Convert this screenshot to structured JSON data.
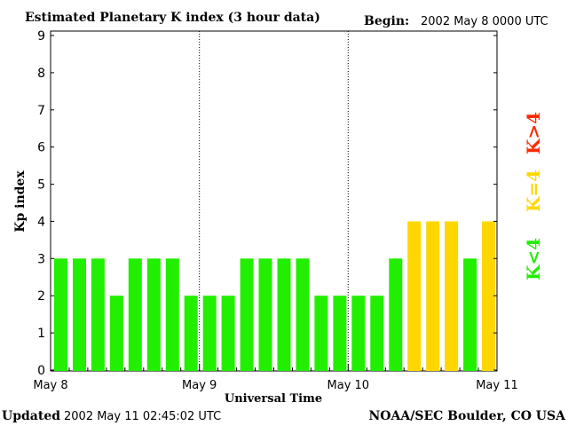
{
  "header": {
    "title": "Estimated Planetary K index (3 hour data)",
    "begin_label": "Begin:",
    "begin_value": "2002 May 8 0000 UTC"
  },
  "footer": {
    "updated_label": "Updated",
    "updated_value": "2002 May 11 02:45:02 UTC",
    "credit": "NOAA/SEC Boulder, CO USA"
  },
  "legend": {
    "high": "K>4",
    "mid": "K=4",
    "low": "K<4",
    "high_color": "#ff2a00",
    "mid_color": "#ffd700",
    "low_color": "#22ee00"
  },
  "chart_data": {
    "type": "bar",
    "title": "Estimated Planetary K index (3 hour data)",
    "xlabel": "Universal Time",
    "ylabel": "Kp index",
    "ylim": [
      0,
      9
    ],
    "yticks": [
      0,
      1,
      2,
      3,
      4,
      5,
      6,
      7,
      8,
      9
    ],
    "xticks": [
      "May 8",
      "May 9",
      "May 10",
      "May 11"
    ],
    "day_separators": [
      "May 9",
      "May 10"
    ],
    "values": [
      3,
      3,
      3,
      2,
      3,
      3,
      3,
      2,
      2,
      2,
      3,
      3,
      3,
      3,
      2,
      2,
      2,
      2,
      3,
      4,
      4,
      4,
      3,
      4
    ],
    "colors": {
      "below_4": "#22ee00",
      "equal_4": "#ffd700",
      "above_4": "#ff2a00"
    }
  }
}
